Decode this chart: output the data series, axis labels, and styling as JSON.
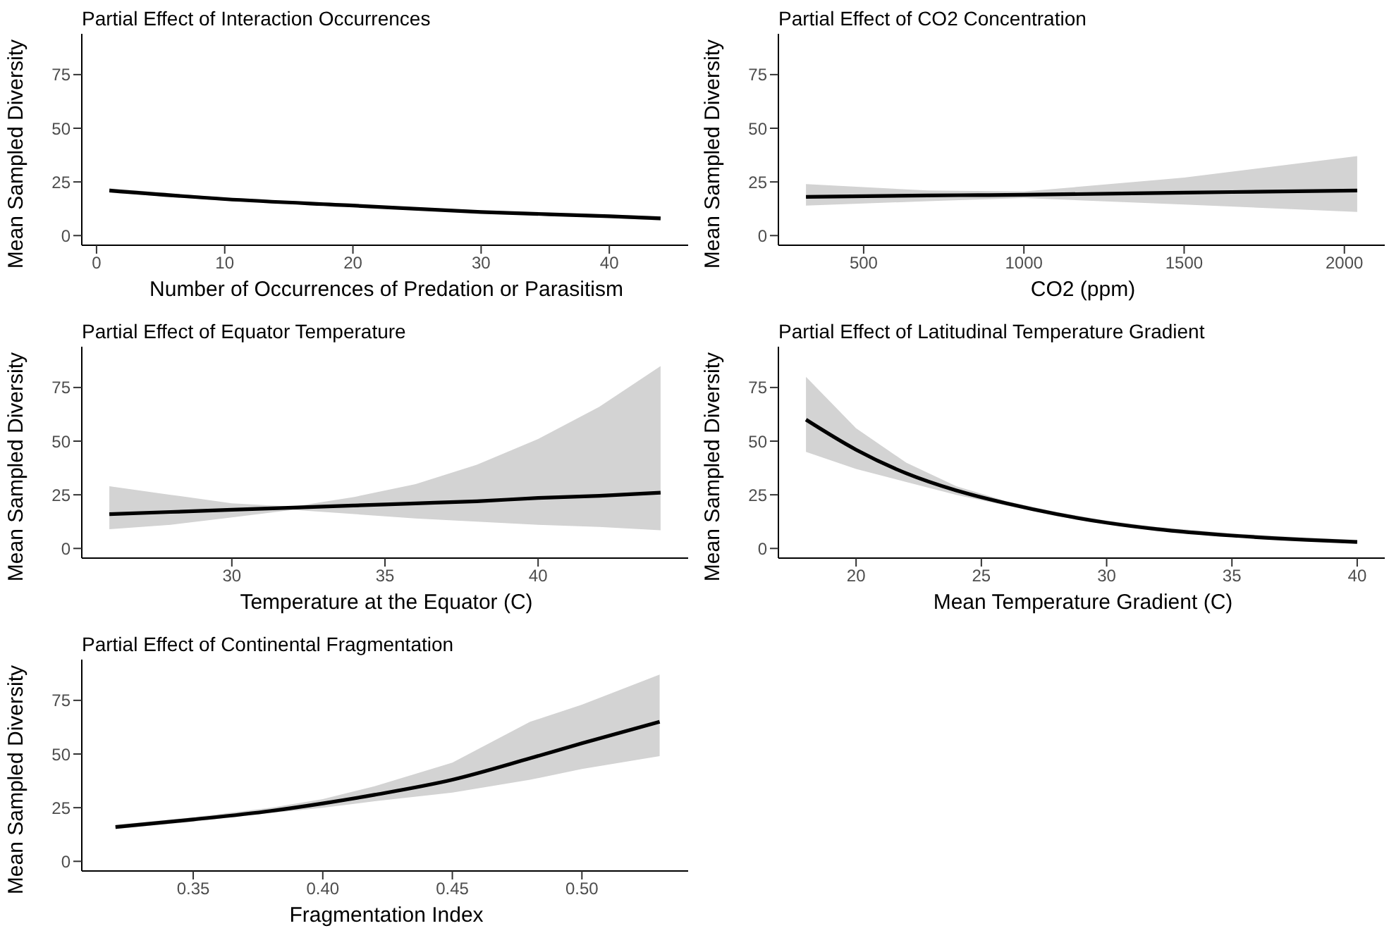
{
  "chart_data": [
    {
      "type": "line",
      "title": "Partial Effect of Interaction Occurrences",
      "xlabel": "Number of Occurrences of Predation or Parasitism",
      "ylabel": "Mean Sampled Diversity",
      "x": [
        1,
        10,
        20,
        30,
        40,
        44
      ],
      "series": [
        {
          "color": "#000000",
          "values": [
            21,
            17,
            14,
            11,
            9,
            8
          ],
          "lower": [
            20,
            16.3,
            13.4,
            10.3,
            8.2,
            7
          ],
          "upper": [
            22,
            17.7,
            14.6,
            11.7,
            9.8,
            9
          ]
        }
      ],
      "xlim": [
        -1.15,
        46.15
      ],
      "xticks": [
        0,
        10,
        20,
        30,
        40
      ],
      "ylim": [
        -4.5,
        94
      ],
      "yticks": [
        0,
        25,
        50,
        75
      ]
    },
    {
      "type": "line",
      "title": "Partial Effect of CO2 Concentration",
      "xlabel": "CO2 (ppm)",
      "ylabel": "Mean Sampled Diversity",
      "x": [
        320,
        700,
        1000,
        1500,
        2040
      ],
      "series": [
        {
          "color": "#000000",
          "values": [
            18,
            18.7,
            19,
            20,
            21
          ],
          "lower": [
            14,
            16,
            17.5,
            14.5,
            11
          ],
          "upper": [
            24,
            21,
            20.5,
            27,
            37
          ]
        }
      ],
      "xlim": [
        234,
        2126
      ],
      "xticks": [
        500,
        1000,
        1500,
        2000
      ],
      "ylim": [
        -4.5,
        94
      ],
      "yticks": [
        0,
        25,
        50,
        75
      ]
    },
    {
      "type": "line",
      "title": "Partial Effect of Equator Temperature",
      "xlabel": "Temperature at the Equator (C)",
      "ylabel": "Mean Sampled Diversity",
      "x": [
        26,
        28,
        30,
        32,
        34,
        36,
        38,
        40,
        42,
        44
      ],
      "series": [
        {
          "color": "#000000",
          "values": [
            16,
            17,
            18,
            19,
            20,
            21,
            22,
            23.5,
            24.5,
            26
          ],
          "lower": [
            9,
            11,
            14.5,
            18,
            16,
            14,
            12.5,
            11,
            10,
            8.5
          ],
          "upper": [
            29,
            25,
            21,
            19.5,
            24,
            30,
            39,
            51,
            66,
            85
          ]
        }
      ],
      "xlim": [
        25.1,
        44.9
      ],
      "xticks": [
        30,
        35,
        40
      ],
      "ylim": [
        -4.5,
        94
      ],
      "yticks": [
        0,
        25,
        50,
        75
      ]
    },
    {
      "type": "line",
      "title": "Partial Effect of Latitudinal Temperature Gradient",
      "xlabel": "Mean Temperature Gradient (C)",
      "ylabel": "Mean Sampled Diversity",
      "x": [
        18,
        20,
        22,
        24,
        26,
        28,
        30,
        32,
        35,
        38,
        40
      ],
      "series": [
        {
          "color": "#000000",
          "values": [
            60,
            46,
            35,
            27,
            21,
            16,
            12,
            9,
            6,
            4,
            3
          ],
          "lower": [
            45,
            37,
            31,
            25,
            20,
            15,
            11.5,
            8.5,
            5.5,
            3.5,
            2.5
          ],
          "upper": [
            80,
            56,
            40,
            29,
            22,
            17,
            13,
            10,
            7,
            5,
            4
          ]
        }
      ],
      "xlim": [
        16.9,
        41.1
      ],
      "xticks": [
        20,
        25,
        30,
        35,
        40
      ],
      "ylim": [
        -4.5,
        94
      ],
      "yticks": [
        0,
        25,
        50,
        75
      ]
    },
    {
      "type": "line",
      "title": "Partial Effect of Continental Fragmentation",
      "xlabel": "Fragmentation Index",
      "ylabel": "Mean Sampled Diversity",
      "x": [
        0.32,
        0.35,
        0.38,
        0.4,
        0.42,
        0.45,
        0.48,
        0.5,
        0.53
      ],
      "series": [
        {
          "color": "#000000",
          "values": [
            16,
            19.5,
            23.5,
            27,
            31,
            38,
            48,
            55,
            65
          ],
          "lower": [
            15,
            18.5,
            22.5,
            25,
            28,
            32,
            38,
            43,
            49
          ],
          "upper": [
            17,
            20.5,
            25,
            29,
            35,
            46,
            65,
            73,
            87
          ]
        }
      ],
      "xlim": [
        0.307,
        0.541
      ],
      "xticks": [
        {
          "value": 0.35,
          "label": "0.35"
        },
        {
          "value": 0.4,
          "label": "0.40"
        },
        {
          "value": 0.45,
          "label": "0.45"
        },
        {
          "value": 0.5,
          "label": "0.50"
        }
      ],
      "ylim": [
        -4.5,
        94
      ],
      "yticks": [
        0,
        25,
        50,
        75
      ]
    }
  ]
}
